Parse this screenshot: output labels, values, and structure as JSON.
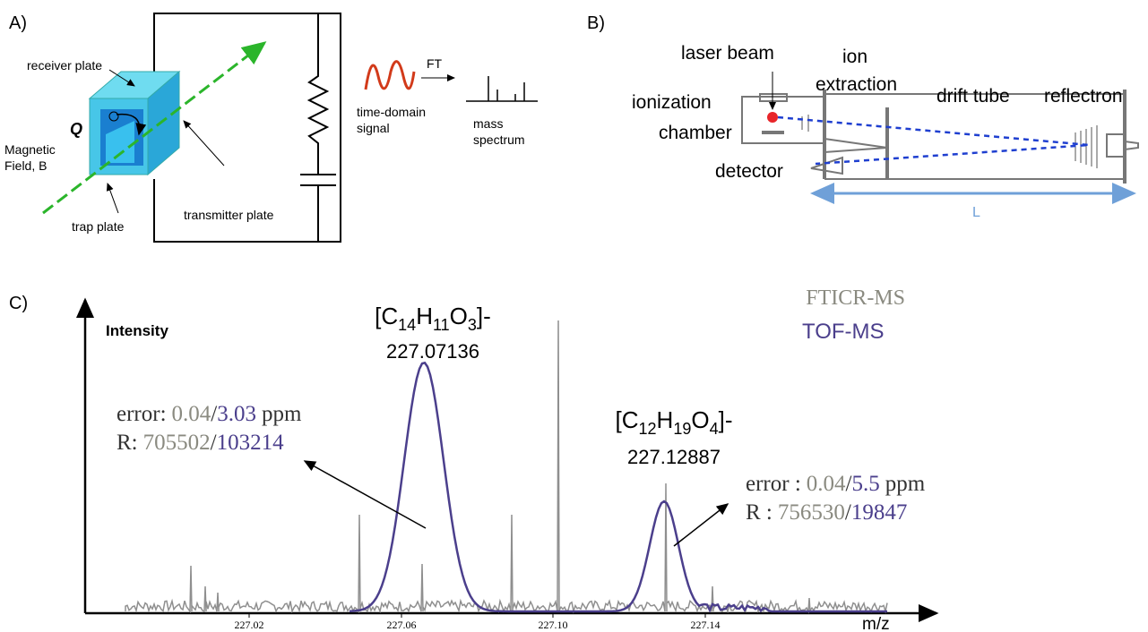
{
  "panel_a": {
    "label": "A)",
    "receiver_plate": "receiver plate",
    "q": "Q",
    "magnetic_field": [
      "Magnetic",
      "Field, B"
    ],
    "trap_plate": "trap plate",
    "transmitter_plate": "transmitter plate",
    "ft": "FT",
    "time_domain_signal": [
      "time-domain",
      "signal"
    ],
    "mass_spectrum": [
      "mass",
      "spectrum"
    ]
  },
  "panel_b": {
    "label": "B)",
    "laser_beam": "laser beam",
    "ion_extraction": [
      "ion",
      "extraction"
    ],
    "ionization_chamber": [
      "ionization",
      "chamber"
    ],
    "drift_tube": "drift tube",
    "reflectron": "reflectron",
    "detector": "detector",
    "length": "L"
  },
  "panel_c": {
    "label": "C)",
    "y_axis": "Intensity",
    "x_axis": "m/z",
    "legend": [
      "FTICR-MS",
      "TOF-MS"
    ],
    "x_ticks": [
      "227.02",
      "227.06",
      "227.10",
      "227.14"
    ],
    "peaks": [
      {
        "formula": [
          "[C",
          "14",
          "H",
          "11",
          "O",
          "3",
          "]-"
        ],
        "mz": "227.07136",
        "error": [
          "error:",
          "0.04",
          "/",
          "3.03",
          "ppm"
        ],
        "resolution": [
          "R:",
          "705502",
          "/",
          "103214"
        ]
      },
      {
        "formula": [
          "[C",
          "12",
          "H",
          "19",
          "O",
          "4",
          "]-"
        ],
        "mz": "227.12887",
        "error": [
          "error :",
          "0.04",
          "/",
          "5.5",
          "ppm"
        ],
        "resolution": [
          "R :",
          "756530",
          "/",
          "19847"
        ]
      }
    ]
  }
}
